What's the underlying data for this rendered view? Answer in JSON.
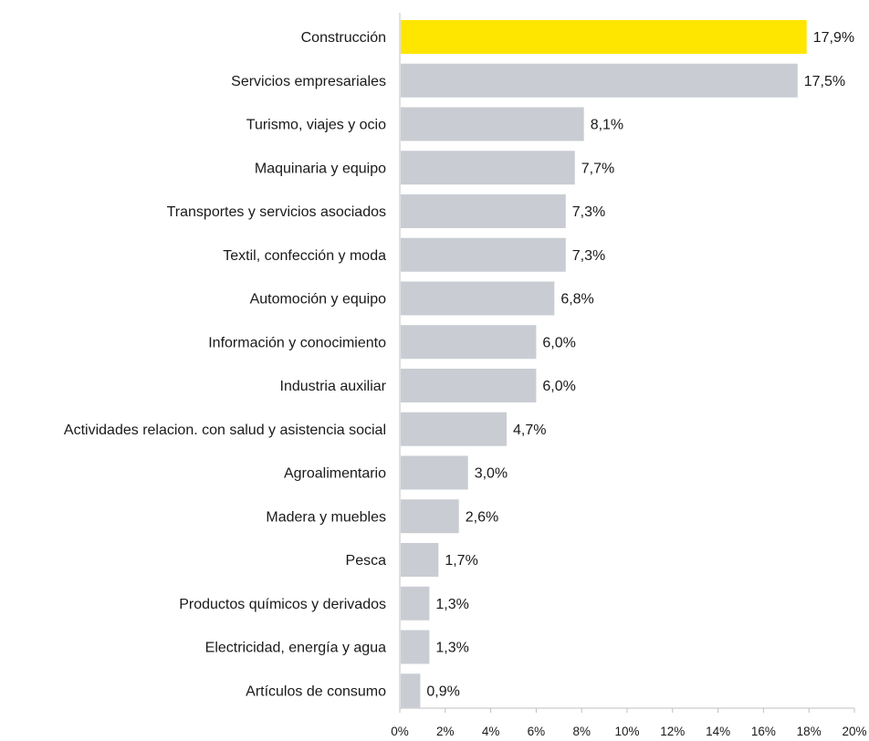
{
  "chart_data": {
    "type": "bar",
    "orientation": "horizontal",
    "categories": [
      "Construcción",
      "Servicios empresariales",
      "Turismo, viajes y ocio",
      "Maquinaria y equipo",
      "Transportes y servicios asociados",
      "Textil, confección y moda",
      "Automoción y equipo",
      "Información y conocimiento",
      "Industria auxiliar",
      "Actividades relacion. con salud y asistencia social",
      "Agroalimentario",
      "Madera y muebles",
      "Pesca",
      "Productos químicos y derivados",
      "Electricidad, energía y agua",
      "Artículos de consumo"
    ],
    "values": [
      17.9,
      17.5,
      8.1,
      7.7,
      7.3,
      7.3,
      6.8,
      6.0,
      6.0,
      4.7,
      3.0,
      2.6,
      1.7,
      1.3,
      1.3,
      0.9
    ],
    "value_labels": [
      "17,9%",
      "17,5%",
      "8,1%",
      "7,7%",
      "7,3%",
      "7,3%",
      "6,8%",
      "6,0%",
      "6,0%",
      "4,7%",
      "3,0%",
      "2,6%",
      "1,7%",
      "1,3%",
      "1,3%",
      "0,9%"
    ],
    "x_ticks": [
      "0%",
      "2%",
      "4%",
      "6%",
      "8%",
      "10%",
      "12%",
      "14%",
      "16%",
      "18%",
      "20%"
    ],
    "xlim": [
      0,
      20
    ],
    "title": "",
    "xlabel": "",
    "ylabel": "",
    "grid": false,
    "legend": "none",
    "colors": {
      "highlight": "#ffe600",
      "bar": "#c9cdd3",
      "axis": "#bfbfbf",
      "text": "#1a1a1a"
    },
    "highlight_index": 0
  }
}
